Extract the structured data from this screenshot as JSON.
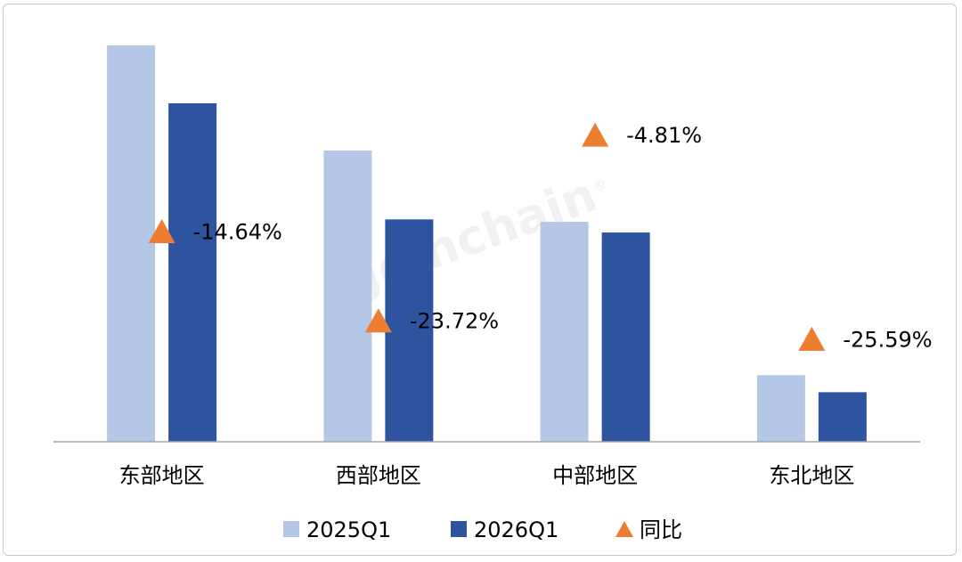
{
  "watermark": "Joinchain",
  "colors": {
    "series1": "#b4c7e7",
    "series2": "#2e54a0",
    "marker": "#ed7d31",
    "axis": "#a6a6a6",
    "text": "#000000"
  },
  "chart_data": {
    "type": "bar",
    "categories": [
      "东部地区",
      "西部地区",
      "中部地区",
      "东北地区"
    ],
    "series": [
      {
        "name": "2025Q1",
        "values": [
          100,
          73.5,
          55.5,
          16.8
        ]
      },
      {
        "name": "2026Q1",
        "values": [
          85.4,
          56.1,
          52.8,
          12.5
        ]
      }
    ],
    "yoy_series": {
      "name": "同比",
      "marker": "triangle",
      "values": [
        -14.64,
        -23.72,
        -4.81,
        -25.59
      ],
      "labels": [
        "-14.64%",
        "-23.72%",
        "-4.81%",
        "-25.59%"
      ],
      "ylim": [
        -30,
        0
      ]
    },
    "ylim": [
      0,
      100
    ],
    "grid": false,
    "legend": "bottom"
  }
}
